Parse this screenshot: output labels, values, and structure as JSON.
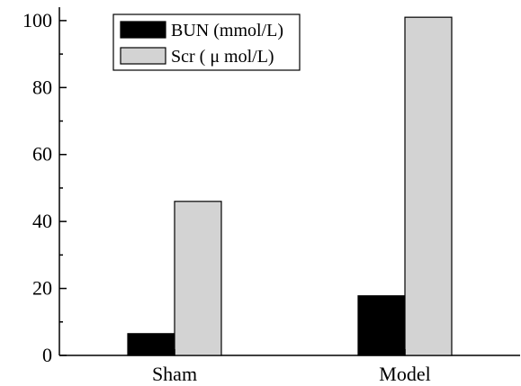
{
  "chart_data": {
    "type": "bar",
    "categories": [
      "Sham",
      "Model"
    ],
    "series": [
      {
        "name": "BUN (mmol/L)",
        "values": [
          6.5,
          17.8
        ],
        "color": "#000000"
      },
      {
        "name": "Scr ( μ mol/L)",
        "values": [
          46,
          101
        ],
        "color": "#d3d3d3"
      }
    ],
    "ylim": [
      0,
      104
    ],
    "yticks": [
      0,
      20,
      40,
      60,
      80,
      100
    ],
    "yticks_minor": [
      10,
      30,
      50,
      70,
      90
    ],
    "grid": false,
    "legend_position": "top-left",
    "title": "",
    "xlabel": "",
    "ylabel": ""
  }
}
